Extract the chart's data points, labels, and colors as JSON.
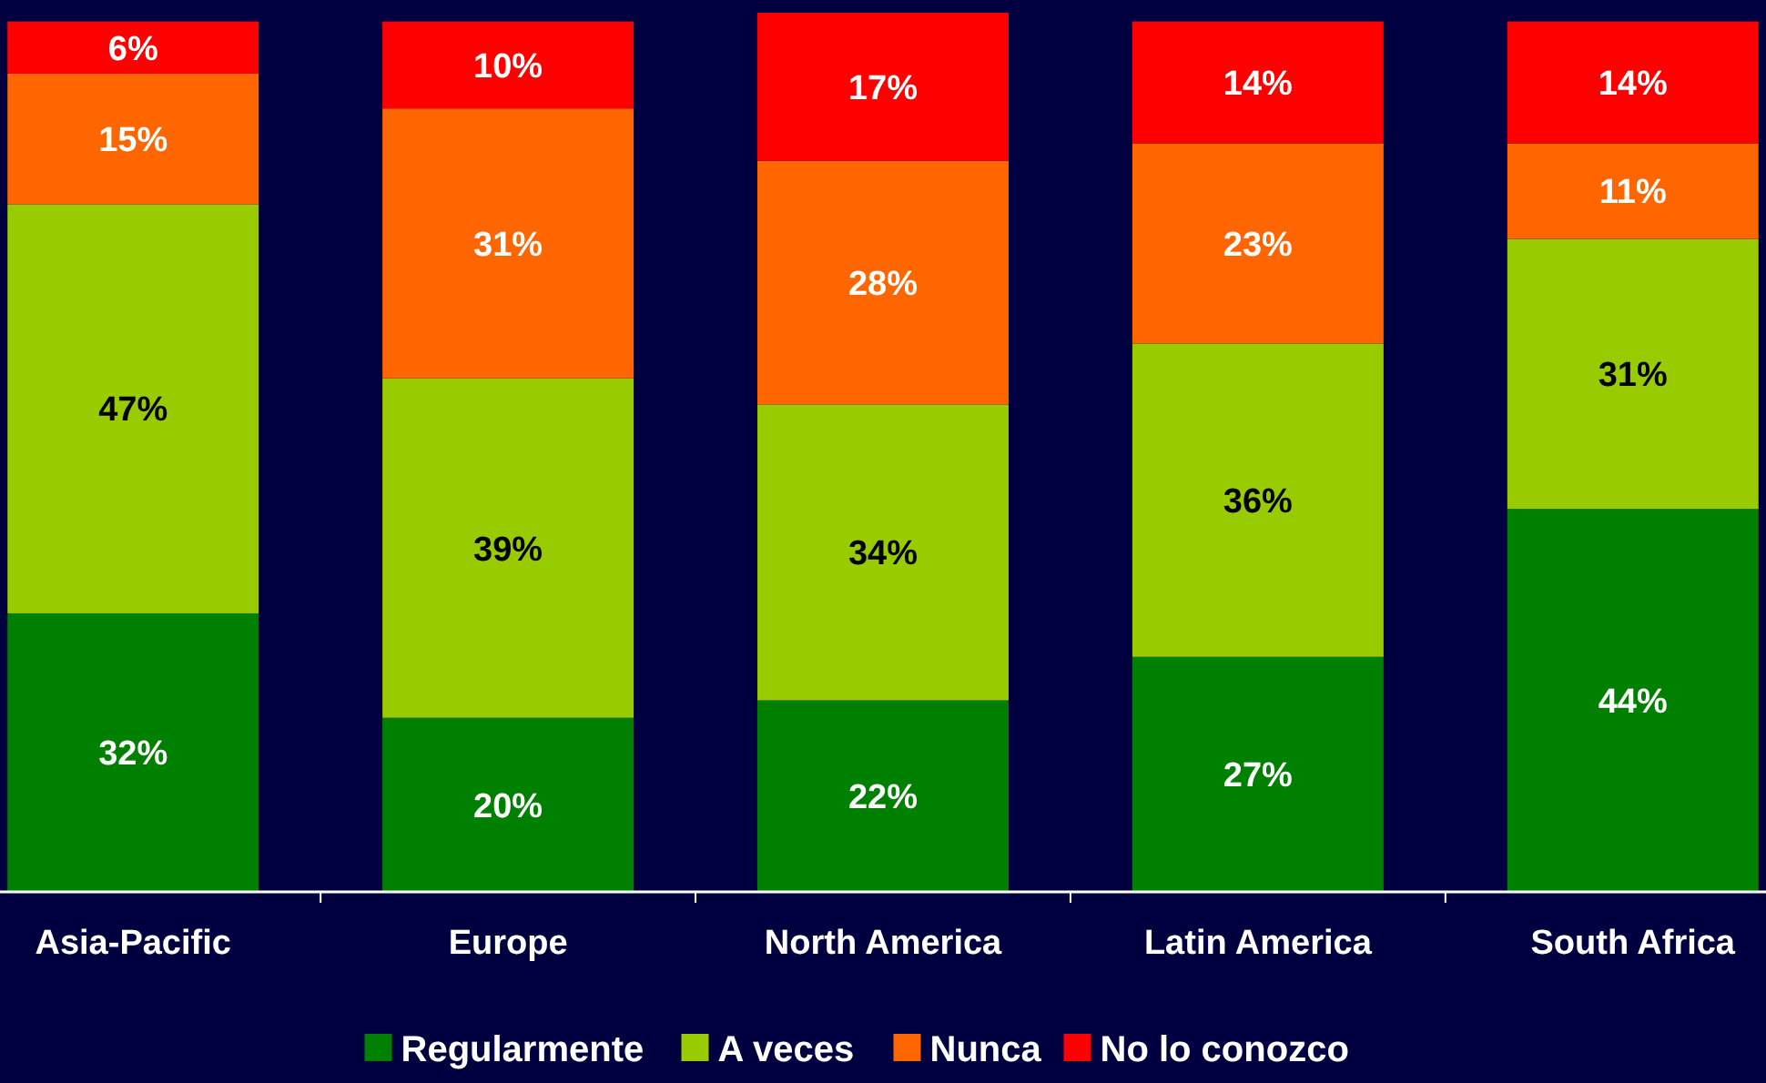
{
  "chart_data": {
    "type": "bar",
    "stacked": true,
    "categories": [
      "Asia-Pacific",
      "Europe",
      "North America",
      "Latin America",
      "South Africa"
    ],
    "series": [
      {
        "name": "Regularmente",
        "color": "#008000",
        "values": [
          32,
          20,
          22,
          27,
          44
        ],
        "value_labels": [
          "32%",
          "20%",
          "22%",
          "27%",
          "44%"
        ]
      },
      {
        "name": "A veces",
        "color": "#99cc00",
        "values": [
          47,
          39,
          34,
          36,
          31
        ],
        "value_labels": [
          "47%",
          "39%",
          "34%",
          "36%",
          "31%"
        ]
      },
      {
        "name": "Nunca",
        "color": "#ff6600",
        "values": [
          15,
          31,
          28,
          23,
          11
        ],
        "value_labels": [
          "15%",
          "31%",
          "28%",
          "23%",
          "11%"
        ]
      },
      {
        "name": "No lo conozco",
        "color": "#ff0000",
        "values": [
          6,
          10,
          17,
          14,
          14
        ],
        "value_labels": [
          "6%",
          "10%",
          "17%",
          "14%",
          "14%"
        ]
      }
    ],
    "legend": "bottom"
  }
}
